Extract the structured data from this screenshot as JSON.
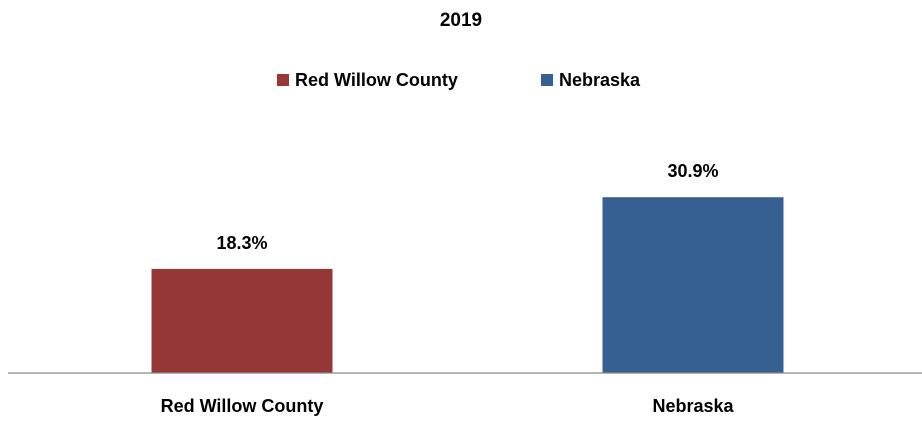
{
  "chart_data": {
    "type": "bar",
    "title": "2019",
    "categories": [
      "Red Willow County",
      "Nebraska"
    ],
    "series": [
      {
        "values": [
          18.3,
          30.9
        ]
      }
    ],
    "data_labels": [
      "18.3%",
      "30.9%"
    ],
    "legend": {
      "placement": "top",
      "entries": [
        {
          "label": "Red Willow County",
          "color": "#953735"
        },
        {
          "label": "Nebraska",
          "color": "#376092"
        }
      ]
    },
    "colors": [
      "#953735",
      "#376092"
    ],
    "value_unit": "%",
    "ylim": [
      0,
      45
    ],
    "grid": false,
    "xlabel": "",
    "ylabel": ""
  }
}
